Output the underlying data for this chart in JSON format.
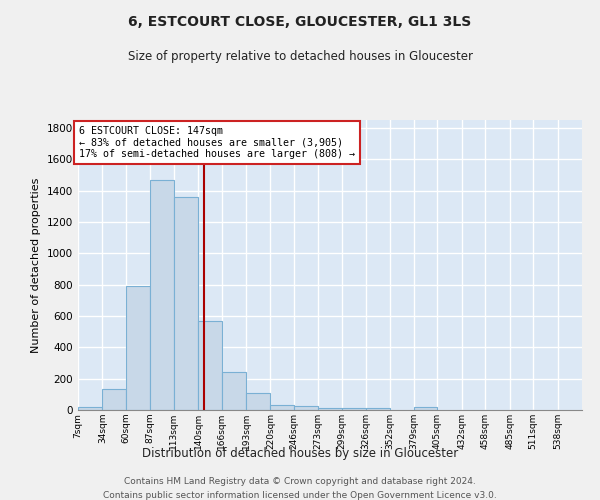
{
  "title": "6, ESTCOURT CLOSE, GLOUCESTER, GL1 3LS",
  "subtitle": "Size of property relative to detached houses in Gloucester",
  "xlabel": "Distribution of detached houses by size in Gloucester",
  "ylabel": "Number of detached properties",
  "bar_color": "#c8d8e8",
  "bar_edge_color": "#7ab0d4",
  "background_color": "#dce8f5",
  "grid_color": "#ffffff",
  "fig_background": "#f0f0f0",
  "bin_labels": [
    "7sqm",
    "34sqm",
    "60sqm",
    "87sqm",
    "113sqm",
    "140sqm",
    "166sqm",
    "193sqm",
    "220sqm",
    "246sqm",
    "273sqm",
    "299sqm",
    "326sqm",
    "352sqm",
    "379sqm",
    "405sqm",
    "432sqm",
    "458sqm",
    "485sqm",
    "511sqm",
    "538sqm"
  ],
  "bin_edges": [
    7,
    34,
    60,
    87,
    113,
    140,
    166,
    193,
    220,
    246,
    273,
    299,
    326,
    352,
    379,
    405,
    432,
    458,
    485,
    511,
    538,
    565
  ],
  "bar_heights": [
    20,
    135,
    790,
    1470,
    1360,
    570,
    245,
    110,
    35,
    25,
    15,
    15,
    15,
    0,
    20,
    0,
    0,
    0,
    0,
    0,
    0
  ],
  "property_size": 147,
  "property_label": "6 ESTCOURT CLOSE: 147sqm",
  "annotation_line1": "← 83% of detached houses are smaller (3,905)",
  "annotation_line2": "17% of semi-detached houses are larger (808) →",
  "vline_color": "#aa0000",
  "ylim": [
    0,
    1850
  ],
  "yticks": [
    0,
    200,
    400,
    600,
    800,
    1000,
    1200,
    1400,
    1600,
    1800
  ],
  "footer_line1": "Contains HM Land Registry data © Crown copyright and database right 2024.",
  "footer_line2": "Contains public sector information licensed under the Open Government Licence v3.0."
}
